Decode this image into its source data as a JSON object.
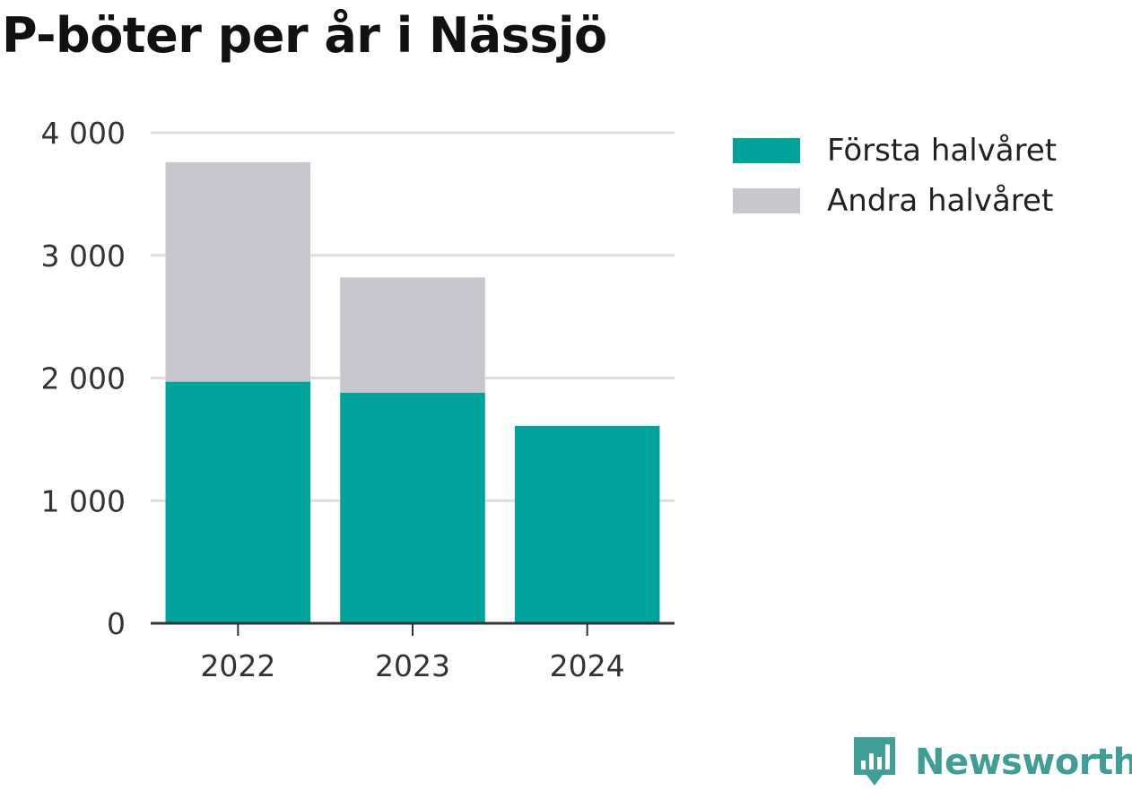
{
  "title": "P-böter per år i Nässjö",
  "colors": {
    "first_half": "#00a39a",
    "second_half": "#c8c7ce",
    "grid": "#dddde0",
    "axis": "#333333",
    "brand": "#3f9f96"
  },
  "legend": [
    {
      "label": "Första halvåret",
      "color": "#00a39a"
    },
    {
      "label": "Andra halvåret",
      "color": "#c8c7ce"
    }
  ],
  "brand": {
    "name": "Newsworthy",
    "icon": "newsworthy-logo-icon"
  },
  "chart_data": {
    "type": "bar",
    "stacked": true,
    "categories": [
      "2022",
      "2023",
      "2024"
    ],
    "series": [
      {
        "name": "Första halvåret",
        "values": [
          1970,
          1880,
          1610
        ]
      },
      {
        "name": "Andra halvåret",
        "values": [
          1790,
          940,
          0
        ]
      }
    ],
    "title": "P-böter per år i Nässjö",
    "xlabel": "",
    "ylabel": "",
    "ylim": [
      0,
      4000
    ],
    "yticks": [
      0,
      1000,
      2000,
      3000,
      4000
    ],
    "ytick_labels": [
      "0",
      "1 000",
      "2 000",
      "3 000",
      "4 000"
    ],
    "grid": true,
    "legend_position": "right"
  }
}
